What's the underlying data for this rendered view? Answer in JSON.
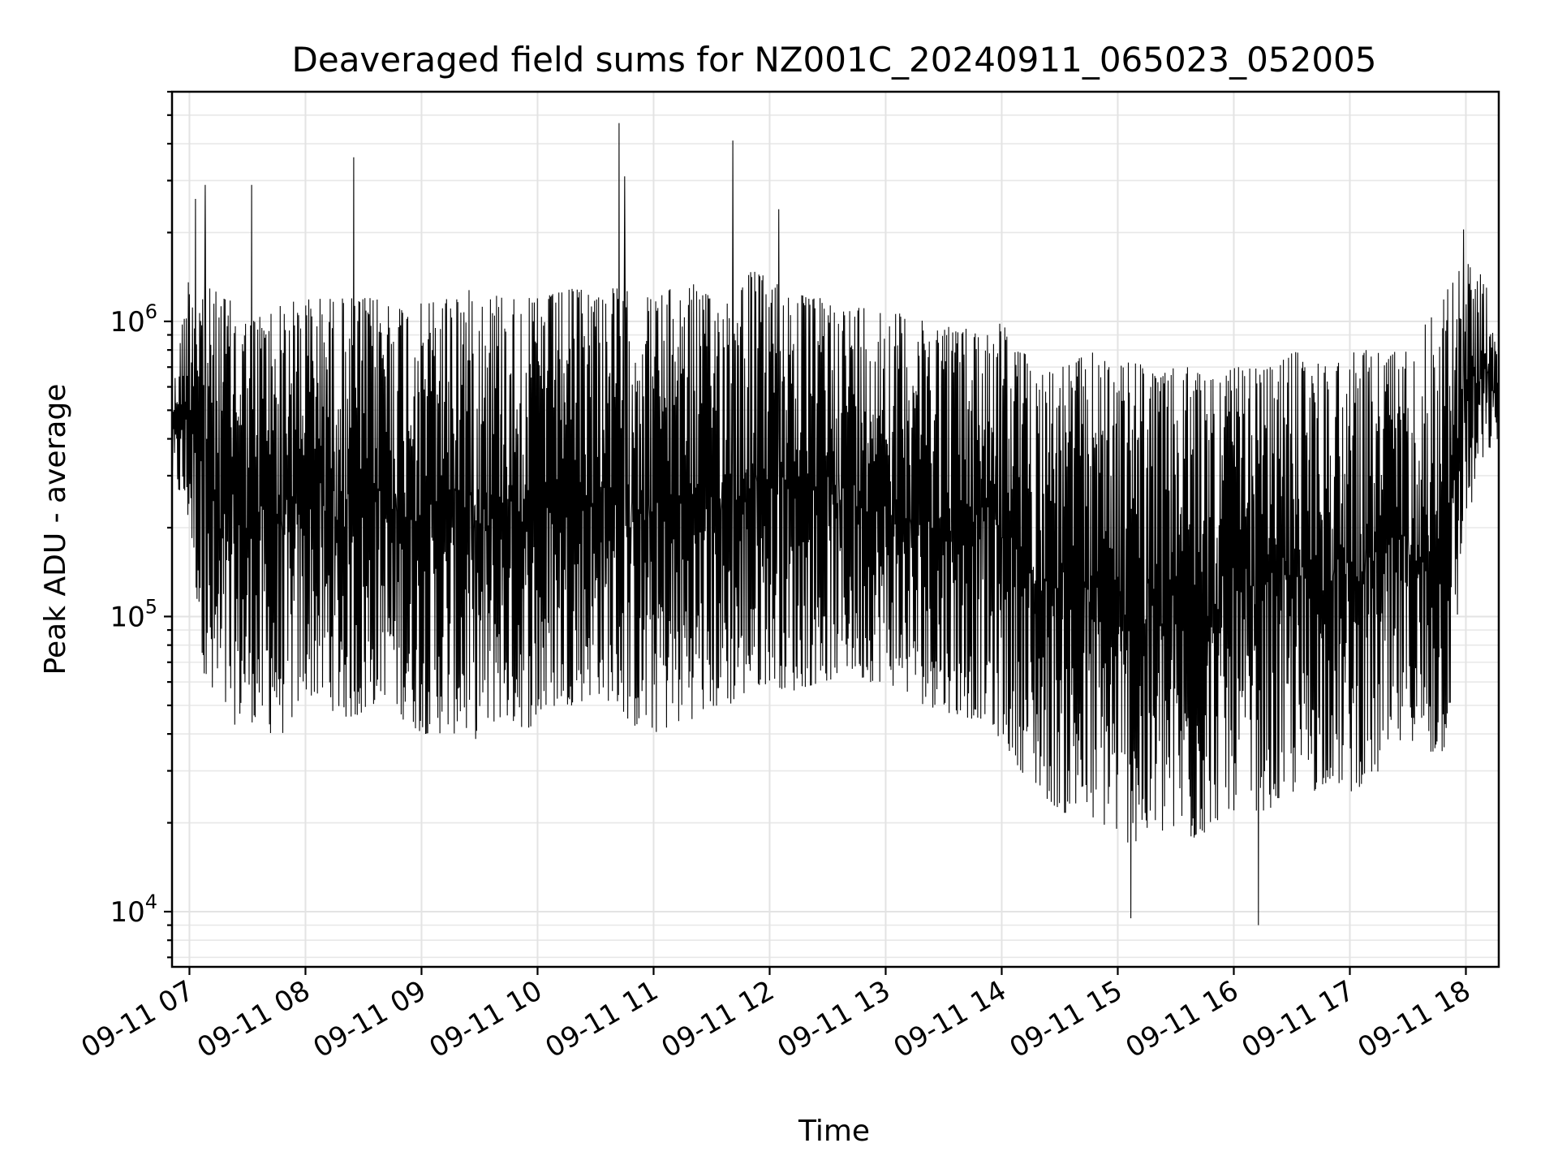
{
  "chart_data": {
    "type": "line",
    "title": "Deaveraged field sums for NZ001C_20240911_065023_052005",
    "xlabel": "Time",
    "ylabel": "Peak ADU - average",
    "y_scale": "log",
    "ylim": [
      6500,
      6000000
    ],
    "xlim": [
      "2024-09-11 06:51",
      "2024-09-11 18:17"
    ],
    "x_ticks": [
      "09-11 07",
      "09-11 08",
      "09-11 09",
      "09-11 10",
      "09-11 11",
      "09-11 12",
      "09-11 13",
      "09-11 14",
      "09-11 15",
      "09-11 16",
      "09-11 17",
      "09-11 18"
    ],
    "y_ticks": [
      {
        "base": "10",
        "exp": "4",
        "value": 10000
      },
      {
        "base": "10",
        "exp": "5",
        "value": 100000
      },
      {
        "base": "10",
        "exp": "6",
        "value": 1000000
      }
    ],
    "grid": true,
    "line_color": "#000000",
    "series": [
      {
        "x": [
          "06:51",
          "07:00",
          "07:10",
          "07:20",
          "07:30",
          "07:40",
          "07:50",
          "08:00",
          "08:10",
          "08:20",
          "08:30",
          "08:40",
          "08:50",
          "09:00",
          "09:10",
          "09:20",
          "09:30",
          "09:40",
          "09:50",
          "10:00",
          "10:10",
          "10:20",
          "10:30",
          "10:40",
          "10:50",
          "11:00",
          "11:10",
          "11:20",
          "11:30",
          "11:40",
          "11:50",
          "12:00",
          "12:10",
          "12:20",
          "12:30",
          "12:40",
          "12:50",
          "13:00",
          "13:10",
          "13:20",
          "13:30",
          "13:40",
          "13:50",
          "14:00",
          "14:10",
          "14:20",
          "14:30",
          "14:40",
          "14:50",
          "15:00",
          "15:10",
          "15:20",
          "15:30",
          "15:40",
          "15:50",
          "16:00",
          "16:10",
          "16:20",
          "16:30",
          "16:40",
          "16:50",
          "17:00",
          "17:10",
          "17:20",
          "17:30",
          "17:40",
          "17:50",
          "18:00",
          "18:10",
          "18:17"
        ],
        "high": [
          550000,
          1500000,
          1300000,
          1200000,
          1000000,
          1100000,
          1150000,
          1200000,
          1200000,
          1200000,
          1200000,
          1200000,
          1150000,
          1150000,
          1200000,
          1300000,
          1250000,
          1250000,
          1200000,
          1200000,
          1250000,
          1300000,
          1300000,
          1300000,
          1250000,
          1200000,
          1300000,
          1350000,
          1200000,
          1250000,
          1500000,
          1400000,
          1300000,
          1200000,
          1200000,
          1100000,
          1150000,
          1100000,
          1050000,
          1000000,
          1000000,
          950000,
          950000,
          1000000,
          800000,
          700000,
          700000,
          750000,
          800000,
          700000,
          750000,
          650000,
          700000,
          700000,
          650000,
          700000,
          700000,
          700000,
          800000,
          750000,
          700000,
          800000,
          800000,
          800000,
          800000,
          1000000,
          1300000,
          1600000,
          1400000,
          700000
        ],
        "low": [
          300000,
          200000,
          45000,
          42000,
          45000,
          40000,
          40000,
          55000,
          50000,
          45000,
          45000,
          55000,
          45000,
          40000,
          40000,
          40000,
          38000,
          45000,
          42000,
          42000,
          50000,
          50000,
          55000,
          50000,
          42000,
          40000,
          42000,
          45000,
          48000,
          50000,
          55000,
          60000,
          55000,
          58000,
          60000,
          65000,
          60000,
          60000,
          55000,
          50000,
          48000,
          45000,
          45000,
          38000,
          30000,
          25000,
          22000,
          20000,
          20000,
          18000,
          16000,
          18000,
          18000,
          17000,
          20000,
          22000,
          22000,
          22000,
          25000,
          25000,
          28000,
          25000,
          28000,
          30000,
          40000,
          32000,
          35000,
          200000,
          350000,
          400000
        ],
        "spikes": [
          {
            "x": "07:03",
            "y": 2600000
          },
          {
            "x": "07:08",
            "y": 2900000
          },
          {
            "x": "07:32",
            "y": 2900000
          },
          {
            "x": "08:25",
            "y": 3600000
          },
          {
            "x": "10:42",
            "y": 4700000
          },
          {
            "x": "10:45",
            "y": 3100000
          },
          {
            "x": "11:41",
            "y": 4100000
          },
          {
            "x": "12:05",
            "y": 2400000
          },
          {
            "x": "15:07",
            "y": 9500
          },
          {
            "x": "16:13",
            "y": 9000
          },
          {
            "x": "17:59",
            "y": 2050000
          }
        ]
      }
    ]
  }
}
